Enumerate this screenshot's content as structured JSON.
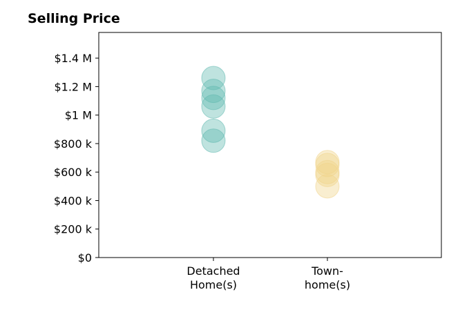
{
  "chart_data": {
    "type": "scatter",
    "title": "Selling Price",
    "xlabel": "",
    "ylabel": "",
    "categories": [
      [
        "Detached",
        "Home(s)"
      ],
      [
        "Town-",
        "home(s)"
      ]
    ],
    "yticks": [
      {
        "value": 0,
        "label": "$0"
      },
      {
        "value": 200000,
        "label": "$200 k"
      },
      {
        "value": 400000,
        "label": "$400 k"
      },
      {
        "value": 600000,
        "label": "$600 k"
      },
      {
        "value": 800000,
        "label": "$800 k"
      },
      {
        "value": 1000000,
        "label": "$1 M"
      },
      {
        "value": 1200000,
        "label": "$1.2 M"
      },
      {
        "value": 1400000,
        "label": "$1.4 M"
      }
    ],
    "ylim": [
      0,
      1580000
    ],
    "grid": false,
    "series": [
      {
        "category_index": 0,
        "color": "#5fb8ae",
        "values": [
          1260000,
          1170000,
          1120000,
          1060000,
          890000,
          820000
        ]
      },
      {
        "category_index": 1,
        "color": "#f0d48a",
        "values": [
          670000,
          650000,
          600000,
          580000,
          500000
        ]
      }
    ]
  }
}
